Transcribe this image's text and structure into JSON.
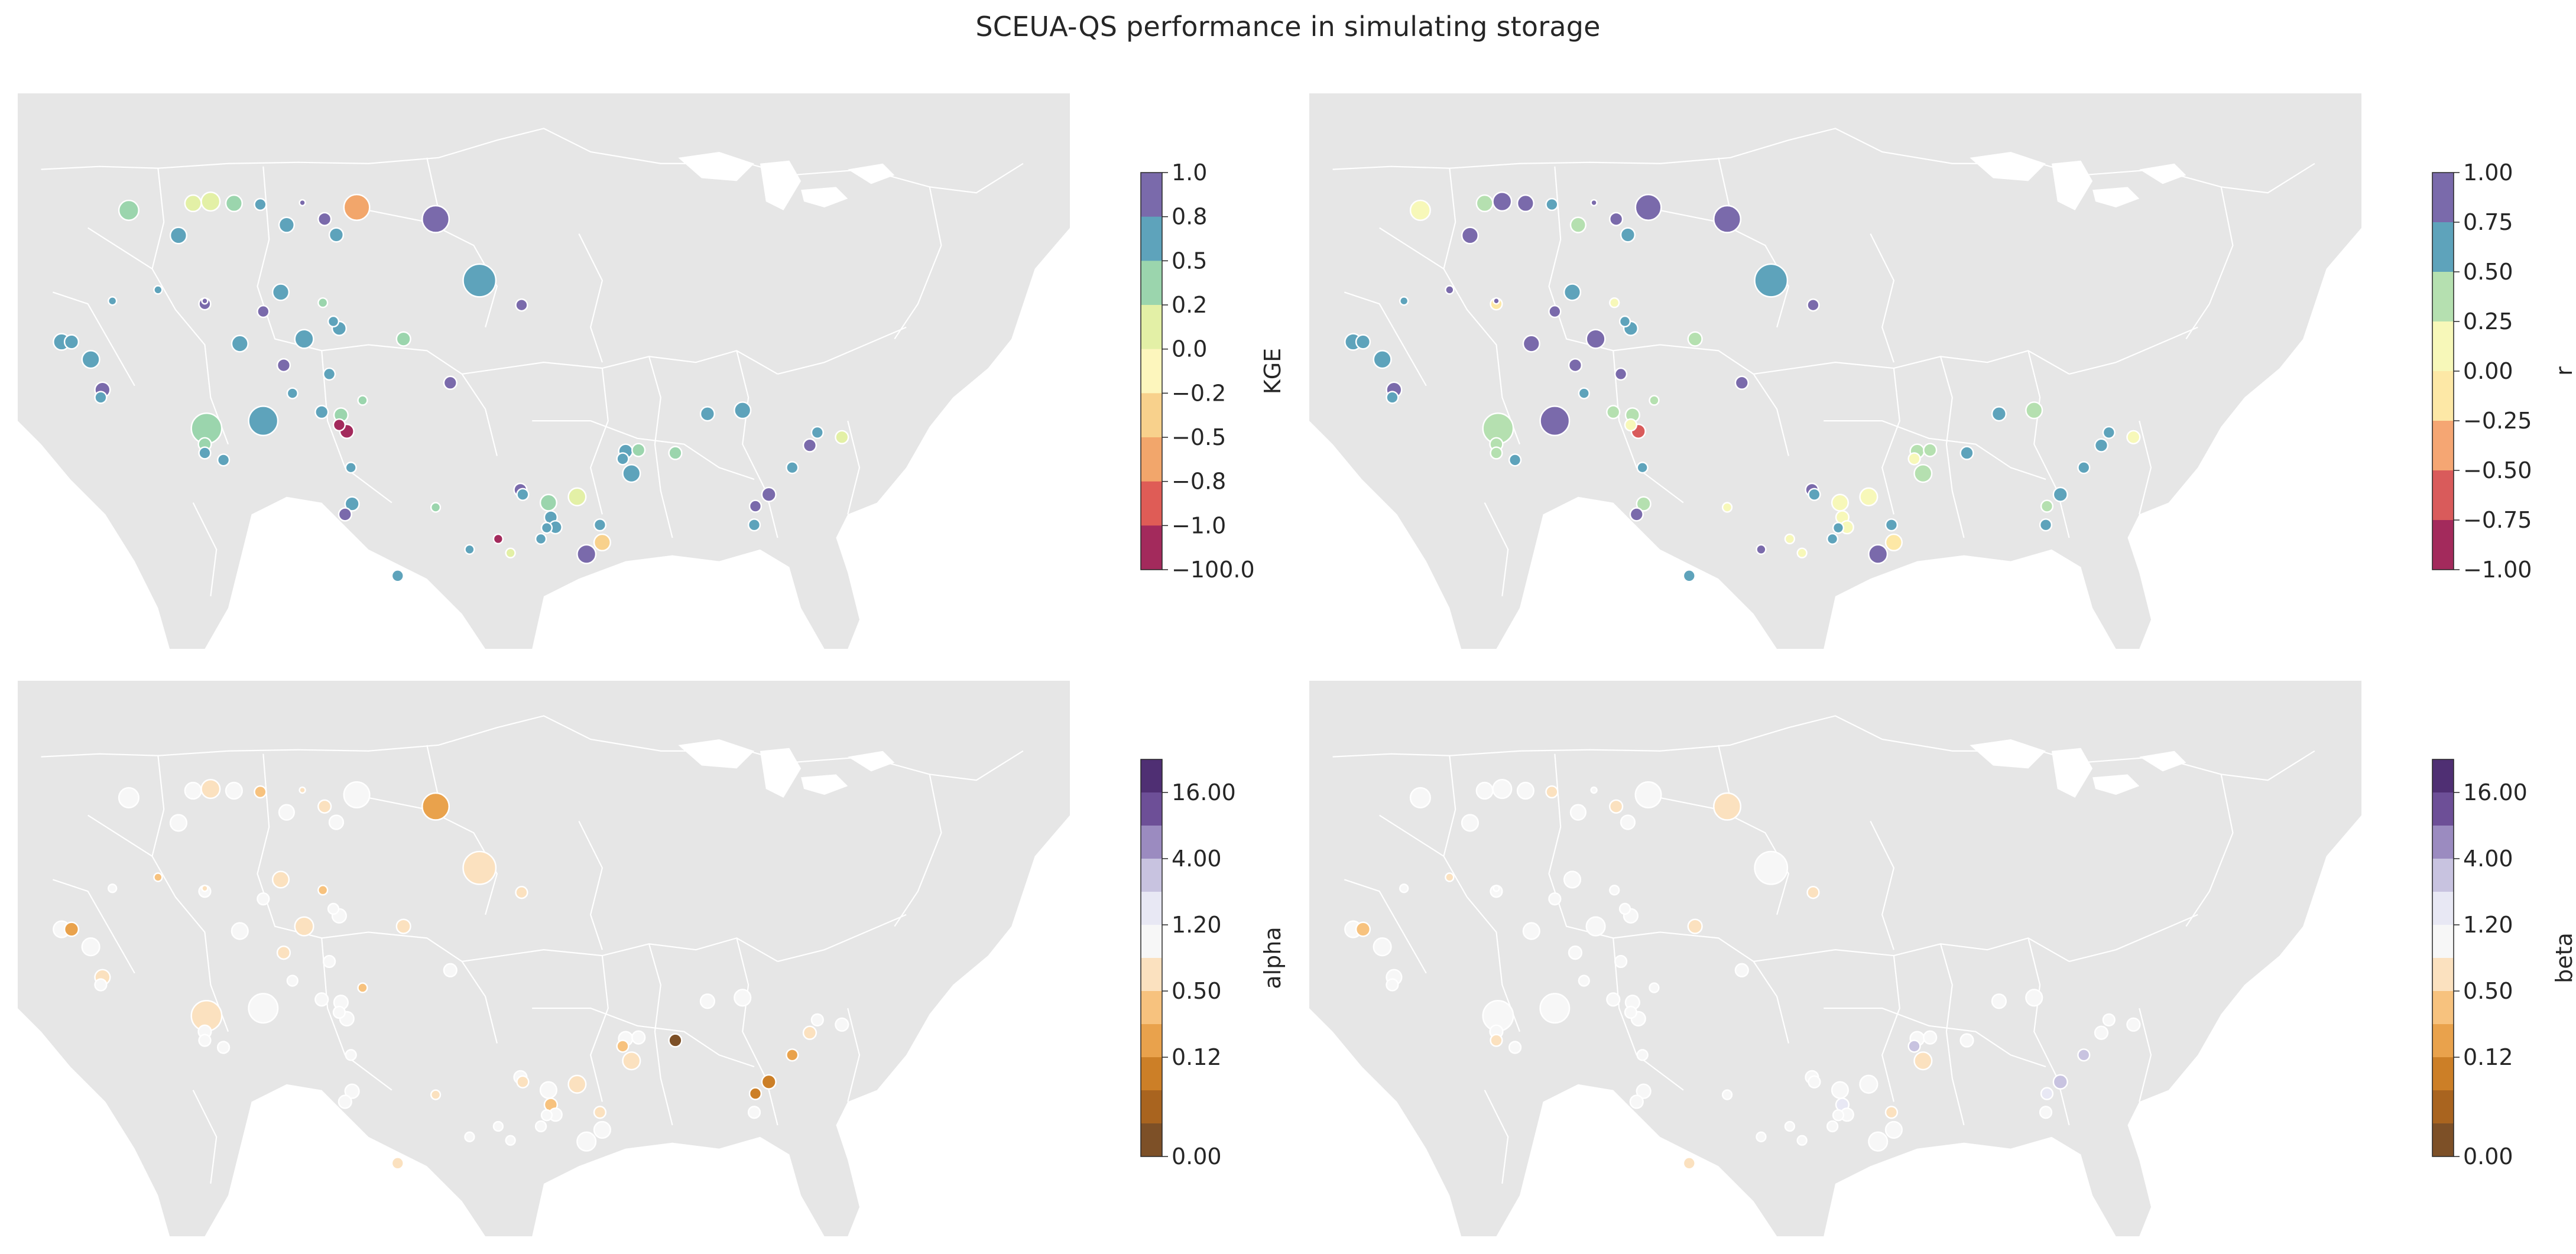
{
  "figure": {
    "title": "SCEUA-QS performance in simulating storage"
  },
  "palette": {
    "land": "#e6e6e6",
    "borders": "#ffffff",
    "marker_edge": "#ffffff",
    "tick_text": "#262626"
  },
  "panels": [
    {
      "metric": "KGE",
      "colorbar": {
        "label": "KGE",
        "tick_labels": [
          "1.0",
          "0.8",
          "0.5",
          "0.2",
          "0.0",
          "−0.2",
          "−0.5",
          "−0.8",
          "−1.0",
          "−100.0"
        ],
        "bin_colors": [
          "#7a6aab",
          "#5ea3bb",
          "#9bd5ad",
          "#e3f0a6",
          "#fdf6bd",
          "#f8d18c",
          "#f2a66b",
          "#df5c56",
          "#a32a5c"
        ]
      },
      "stations": [
        {
          "c": 2
        },
        {
          "c": 3
        },
        {
          "c": 3
        },
        {
          "c": 2
        },
        {
          "c": 1
        },
        {
          "c": 1
        },
        {
          "c": 1
        },
        {
          "c": 0
        },
        {
          "c": 0
        },
        {
          "c": 1
        },
        {
          "c": 6
        },
        {
          "c": 0
        },
        {
          "c": 1
        },
        {
          "c": 0
        },
        {
          "c": 1
        },
        {
          "c": 1
        },
        {
          "c": 0
        },
        {
          "c": 1
        },
        {
          "c": 0
        },
        {
          "c": 0
        },
        {
          "c": 2
        },
        {
          "c": 1
        },
        {
          "c": 1
        },
        {
          "c": 1
        },
        {
          "c": 1
        },
        {
          "c": 1
        },
        {
          "c": 1
        },
        {
          "c": 2
        },
        {
          "c": 0
        },
        {
          "c": 0
        },
        {
          "c": 2
        },
        {
          "c": 1
        },
        {
          "c": 1
        },
        {
          "c": 1
        },
        {
          "c": 0
        },
        {
          "c": 1
        },
        {
          "c": 1
        },
        {
          "c": 2
        },
        {
          "c": 8
        },
        {
          "c": 8
        },
        {
          "c": 2
        },
        {
          "c": 1
        },
        {
          "c": 2
        },
        {
          "c": 1
        },
        {
          "c": 1
        },
        {
          "c": 1
        },
        {
          "c": 1
        },
        {
          "c": 0
        },
        {
          "c": 2
        },
        {
          "c": 1
        },
        {
          "c": 3
        },
        {
          "c": 1
        },
        {
          "c": 8
        },
        {
          "c": 1
        },
        {
          "c": 0
        },
        {
          "c": 0
        },
        {
          "c": 1
        },
        {
          "c": 2
        },
        {
          "c": 1
        },
        {
          "c": 3
        },
        {
          "c": 1
        },
        {
          "c": 1
        },
        {
          "c": 1
        },
        {
          "c": 1
        },
        {
          "c": 2
        },
        {
          "c": 1
        },
        {
          "c": 1
        },
        {
          "c": 5
        },
        {
          "c": 2
        },
        {
          "c": 1
        },
        {
          "c": 1
        },
        {
          "c": 0
        },
        {
          "c": 1
        },
        {
          "c": 1
        },
        {
          "c": 0
        },
        {
          "c": 0
        },
        {
          "c": 1
        },
        {
          "c": 3
        }
      ]
    },
    {
      "metric": "r",
      "colorbar": {
        "label": "r",
        "tick_labels": [
          "1.00",
          "0.75",
          "0.50",
          "0.25",
          "0.00",
          "−0.25",
          "−0.50",
          "−0.75",
          "−1.00"
        ],
        "bin_colors": [
          "#7a6aab",
          "#5ea3bb",
          "#b5e0b0",
          "#f7f8b9",
          "#fde8a6",
          "#f5a673",
          "#d95b5b",
          "#a32a5c"
        ]
      },
      "stations": [
        {
          "c": 3
        },
        {
          "c": 2
        },
        {
          "c": 0
        },
        {
          "c": 0
        },
        {
          "c": 0
        },
        {
          "c": 1
        },
        {
          "c": 2
        },
        {
          "c": 0
        },
        {
          "c": 0
        },
        {
          "c": 1
        },
        {
          "c": 0
        },
        {
          "c": 0
        },
        {
          "c": 1
        },
        {
          "c": 0
        },
        {
          "c": 0
        },
        {
          "c": 1
        },
        {
          "c": 0
        },
        {
          "c": 1
        },
        {
          "c": 4
        },
        {
          "c": 0
        },
        {
          "c": 3
        },
        {
          "c": 1
        },
        {
          "c": 1
        },
        {
          "c": 0
        },
        {
          "c": 0
        },
        {
          "c": 1
        },
        {
          "c": 0
        },
        {
          "c": 2
        },
        {
          "c": 0
        },
        {
          "c": 0
        },
        {
          "c": 2
        },
        {
          "c": 1
        },
        {
          "c": 1
        },
        {
          "c": 1
        },
        {
          "c": 0
        },
        {
          "c": 1
        },
        {
          "c": 2
        },
        {
          "c": 2
        },
        {
          "c": 3
        },
        {
          "c": 6
        },
        {
          "c": 2
        },
        {
          "c": 0
        },
        {
          "c": 2
        },
        {
          "c": 1
        },
        {
          "c": 2
        },
        {
          "c": 1
        },
        {
          "c": 2
        },
        {
          "c": 0
        },
        {
          "c": 3
        },
        {
          "c": 0
        },
        {
          "c": 3
        },
        {
          "c": 1
        },
        {
          "c": 3
        },
        {
          "c": 1
        },
        {
          "c": 0
        },
        {
          "c": 0
        },
        {
          "c": 1
        },
        {
          "c": 3
        },
        {
          "c": 3
        },
        {
          "c": 3
        },
        {
          "c": 1
        },
        {
          "c": 3
        },
        {
          "c": 1
        },
        {
          "c": 2
        },
        {
          "c": 2
        },
        {
          "c": 3
        },
        {
          "c": 2
        },
        {
          "c": 4
        },
        {
          "c": 1
        },
        {
          "c": 1
        },
        {
          "c": 2
        },
        {
          "c": 1
        },
        {
          "c": 1
        },
        {
          "c": 1
        },
        {
          "c": 1
        },
        {
          "c": 2
        },
        {
          "c": 1
        },
        {
          "c": 3
        }
      ]
    },
    {
      "metric": "alpha",
      "colorbar": {
        "label": "alpha",
        "tick_labels": [
          "16.00",
          "4.00",
          "1.20",
          "0.50",
          "0.12",
          "0.00"
        ],
        "bin_colors": [
          "#4f2f73",
          "#6d4f97",
          "#9b8bc0",
          "#c8c3e0",
          "#e8e8f4",
          "#f7f7f7",
          "#fbe1bf",
          "#f7c27e",
          "#e9a24c",
          "#cc7f27",
          "#a9641f",
          "#7d5027"
        ]
      },
      "stations": [
        {
          "c": 5
        },
        {
          "c": 5
        },
        {
          "c": 6
        },
        {
          "c": 5
        },
        {
          "c": 5
        },
        {
          "c": 7
        },
        {
          "c": 5
        },
        {
          "c": 6
        },
        {
          "c": 6
        },
        {
          "c": 5
        },
        {
          "c": 5
        },
        {
          "c": 8
        },
        {
          "c": 6
        },
        {
          "c": 6
        },
        {
          "c": 7
        },
        {
          "c": 5
        },
        {
          "c": 6
        },
        {
          "c": 6
        },
        {
          "c": 5
        },
        {
          "c": 5
        },
        {
          "c": 7
        },
        {
          "c": 5
        },
        {
          "c": 5
        },
        {
          "c": 6
        },
        {
          "c": 5
        },
        {
          "c": 5
        },
        {
          "c": 5
        },
        {
          "c": 6
        },
        {
          "c": 5
        },
        {
          "c": 6
        },
        {
          "c": 7
        },
        {
          "c": 5
        },
        {
          "c": 8
        },
        {
          "c": 5
        },
        {
          "c": 6
        },
        {
          "c": 5
        },
        {
          "c": 5
        },
        {
          "c": 5
        },
        {
          "c": 5
        },
        {
          "c": 5
        },
        {
          "c": 6
        },
        {
          "c": 5
        },
        {
          "c": 5
        },
        {
          "c": 5
        },
        {
          "c": 5
        },
        {
          "c": 5
        },
        {
          "c": 5
        },
        {
          "c": 5
        },
        {
          "c": 6
        },
        {
          "c": 5
        },
        {
          "c": 5
        },
        {
          "c": 6
        },
        {
          "c": 5
        },
        {
          "c": 5
        },
        {
          "c": 5
        },
        {
          "c": 5
        },
        {
          "c": 6
        },
        {
          "c": 5
        },
        {
          "c": 7
        },
        {
          "c": 6
        },
        {
          "c": 5
        },
        {
          "c": 5
        },
        {
          "c": 6
        },
        {
          "c": 6
        },
        {
          "c": 5
        },
        {
          "c": 7
        },
        {
          "c": 5
        },
        {
          "c": 5
        },
        {
          "c": 11
        },
        {
          "c": 5
        },
        {
          "c": 5
        },
        {
          "c": 6
        },
        {
          "c": 5
        },
        {
          "c": 8
        },
        {
          "c": 9
        },
        {
          "c": 9
        },
        {
          "c": 5
        },
        {
          "c": 5
        }
      ]
    },
    {
      "metric": "beta",
      "colorbar": {
        "label": "beta",
        "tick_labels": [
          "16.00",
          "4.00",
          "1.20",
          "0.50",
          "0.12",
          "0.00"
        ],
        "bin_colors": [
          "#4f2f73",
          "#6d4f97",
          "#9b8bc0",
          "#c8c3e0",
          "#e8e8f4",
          "#f7f7f7",
          "#fbe1bf",
          "#f7c27e",
          "#e9a24c",
          "#cc7f27",
          "#a9641f",
          "#7d5027"
        ]
      },
      "stations": [
        {
          "c": 5
        },
        {
          "c": 5
        },
        {
          "c": 5
        },
        {
          "c": 5
        },
        {
          "c": 5
        },
        {
          "c": 6
        },
        {
          "c": 5
        },
        {
          "c": 5
        },
        {
          "c": 6
        },
        {
          "c": 5
        },
        {
          "c": 5
        },
        {
          "c": 6
        },
        {
          "c": 5
        },
        {
          "c": 6
        },
        {
          "c": 6
        },
        {
          "c": 5
        },
        {
          "c": 5
        },
        {
          "c": 5
        },
        {
          "c": 5
        },
        {
          "c": 5
        },
        {
          "c": 5
        },
        {
          "c": 5
        },
        {
          "c": 5
        },
        {
          "c": 5
        },
        {
          "c": 5
        },
        {
          "c": 5
        },
        {
          "c": 5
        },
        {
          "c": 6
        },
        {
          "c": 5
        },
        {
          "c": 5
        },
        {
          "c": 5
        },
        {
          "c": 5
        },
        {
          "c": 7
        },
        {
          "c": 5
        },
        {
          "c": 5
        },
        {
          "c": 5
        },
        {
          "c": 5
        },
        {
          "c": 5
        },
        {
          "c": 5
        },
        {
          "c": 5
        },
        {
          "c": 5
        },
        {
          "c": 5
        },
        {
          "c": 5
        },
        {
          "c": 5
        },
        {
          "c": 6
        },
        {
          "c": 5
        },
        {
          "c": 5
        },
        {
          "c": 5
        },
        {
          "c": 5
        },
        {
          "c": 5
        },
        {
          "c": 5
        },
        {
          "c": 6
        },
        {
          "c": 5
        },
        {
          "c": 5
        },
        {
          "c": 5
        },
        {
          "c": 5
        },
        {
          "c": 5
        },
        {
          "c": 5
        },
        {
          "c": 4
        },
        {
          "c": 5
        },
        {
          "c": 5
        },
        {
          "c": 5
        },
        {
          "c": 6
        },
        {
          "c": 6
        },
        {
          "c": 5
        },
        {
          "c": 3
        },
        {
          "c": 5
        },
        {
          "c": 5
        },
        {
          "c": 5
        },
        {
          "c": 5
        },
        {
          "c": 5
        },
        {
          "c": 5
        },
        {
          "c": 5
        },
        {
          "c": 3
        },
        {
          "c": 3
        },
        {
          "c": 4
        },
        {
          "c": 5
        },
        {
          "c": 5
        }
      ]
    }
  ]
}
